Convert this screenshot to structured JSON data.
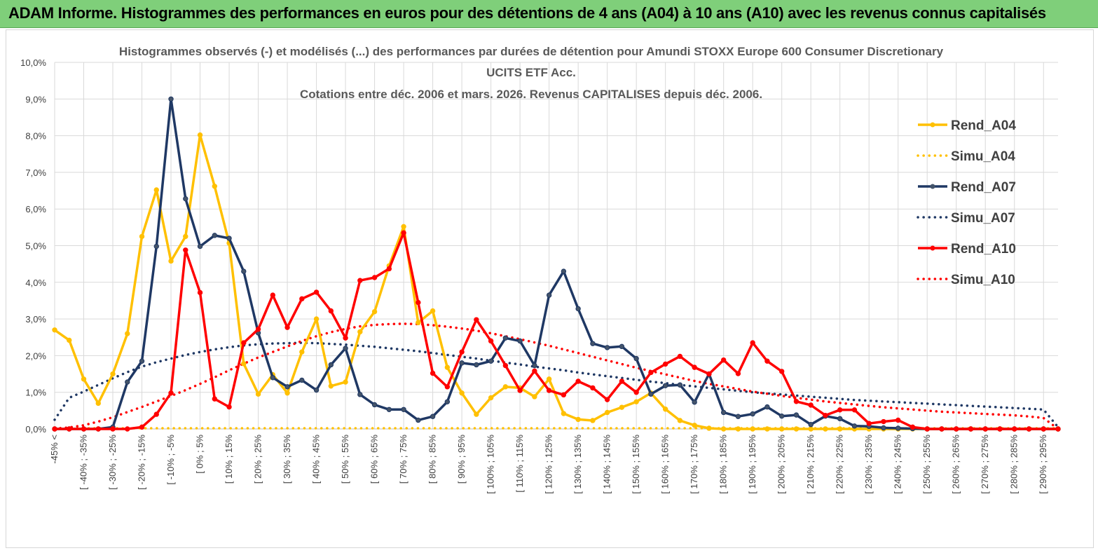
{
  "banner": {
    "title": "ADAM Informe. Histogrammes des performances en euros pour des détentions de 4 ans (A04) à 10 ans (A10) avec les revenus connus capitalisés"
  },
  "chart_data": {
    "type": "line",
    "title": [
      "Histogrammes observés (-) et modélisés (...) des performances par durées de détention pour Amundi STOXX Europe 600 Consumer Discretionary",
      "UCITS ETF Acc.",
      "Cotations entre déc. 2006 et mars. 2026. Revenus CAPITALISES depuis déc. 2006."
    ],
    "ylim": [
      0,
      10
    ],
    "yticks": [
      "0,0%",
      "1,0%",
      "2,0%",
      "3,0%",
      "4,0%",
      "5,0%",
      "6,0%",
      "7,0%",
      "8,0%",
      "9,0%",
      "10,0%"
    ],
    "grid": true,
    "legend_position": "right",
    "categories": [
      "-45% <",
      "[ -45% ; -40%",
      "[ -40% ; -35%",
      "[ -35% ; -30%",
      "[ -30% ; -25%",
      "[ -25% ; -20%",
      "[ -20% ; -15%",
      "[ -15% ; -10%",
      "[ -10% ; -5%",
      "[ -5% ; 0%",
      "[ 0% ; 5%",
      "[ 5% ; 10%",
      "[ 10% ; 15%",
      "[ 15% ; 20%",
      "[ 20% ; 25%",
      "[ 25% ; 30%",
      "[ 30% ; 35%",
      "[ 35% ; 40%",
      "[ 40% ; 45%",
      "[ 45% ; 50%",
      "[ 50% ; 55%",
      "[ 55% ; 60%",
      "[ 60% ; 65%",
      "[ 65% ; 70%",
      "[ 70% ; 75%",
      "[ 75% ; 80%",
      "[ 80% ; 85%",
      "[ 85% ; 90%",
      "[ 90% ; 95%",
      "[ 95% ; 100%",
      "[ 100% ; 105%",
      "[ 105% ; 110%",
      "[ 110% ; 115%",
      "[ 115% ; 120%",
      "[ 120% ; 125%",
      "[ 125% ; 130%",
      "[ 130% ; 135%",
      "[ 135% ; 140%",
      "[ 140% ; 145%",
      "[ 145% ; 150%",
      "[ 150% ; 155%",
      "[ 155% ; 160%",
      "[ 160% ; 165%",
      "[ 165% ; 170%",
      "[ 170% ; 175%",
      "[ 175% ; 180%",
      "[ 180% ; 185%",
      "[ 185% ; 190%",
      "[ 190% ; 195%",
      "[ 195% ; 200%",
      "[ 200% ; 205%",
      "[ 205% ; 210%",
      "[ 210% ; 215%",
      "[ 215% ; 220%",
      "[ 220% ; 225%",
      "[ 225% ; 230%",
      "[ 230% ; 235%",
      "[ 235% ; 240%",
      "[ 240% ; 245%",
      "[ 245% ; 250%",
      "[ 250% ; 255%",
      "[ 255% ; 260%",
      "[ 260% ; 265%",
      "[ 265% ; 270%",
      "[ 270% ; 275%",
      "[ 275% ; 280%",
      "[ 280% ; 285%",
      "[ 285% ; 290%",
      "[ 290% ; 295%",
      "[ 295% ; 300%"
    ],
    "visible_category_labels": [
      {
        "index": 0,
        "label": "-45% <"
      },
      {
        "index": 2,
        "label": "[ -40% ; -35%"
      },
      {
        "index": 4,
        "label": "[ -30% ; -25%"
      },
      {
        "index": 6,
        "label": "[ -20% ; -15%"
      },
      {
        "index": 8,
        "label": "[ -10% ; -5%"
      },
      {
        "index": 10,
        "label": "[ 0% ; 5%"
      },
      {
        "index": 12,
        "label": "[ 10% ; 15%"
      },
      {
        "index": 14,
        "label": "[ 20% ; 25%"
      },
      {
        "index": 16,
        "label": "[ 30% ; 35%"
      },
      {
        "index": 18,
        "label": "[ 40% ; 45%"
      },
      {
        "index": 20,
        "label": "[ 50% ; 55%"
      },
      {
        "index": 22,
        "label": "[ 60% ; 65%"
      },
      {
        "index": 24,
        "label": "[ 70% ; 75%"
      },
      {
        "index": 26,
        "label": "[ 80% ; 85%"
      },
      {
        "index": 28,
        "label": "[ 90% ; 95%"
      },
      {
        "index": 30,
        "label": "[ 100% ; 105%"
      },
      {
        "index": 32,
        "label": "[ 110% ; 115%"
      },
      {
        "index": 34,
        "label": "[ 120% ; 125%"
      },
      {
        "index": 36,
        "label": "[ 130% ; 135%"
      },
      {
        "index": 38,
        "label": "[ 140% ; 145%"
      },
      {
        "index": 40,
        "label": "[ 150% ; 155%"
      },
      {
        "index": 42,
        "label": "[ 160% ; 165%"
      },
      {
        "index": 44,
        "label": "[ 170% ; 175%"
      },
      {
        "index": 46,
        "label": "[ 180% ; 185%"
      },
      {
        "index": 48,
        "label": "[ 190% ; 195%"
      },
      {
        "index": 50,
        "label": "[ 200% ; 205%"
      },
      {
        "index": 52,
        "label": "[ 210% ; 215%"
      },
      {
        "index": 54,
        "label": "[ 220% ; 225%"
      },
      {
        "index": 56,
        "label": "[ 230% ; 235%"
      },
      {
        "index": 58,
        "label": "[ 240% ; 245%"
      },
      {
        "index": 60,
        "label": "[ 250% ; 255%"
      },
      {
        "index": 62,
        "label": "[ 260% ; 265%"
      },
      {
        "index": 64,
        "label": "[ 270% ; 275%"
      },
      {
        "index": 66,
        "label": "[ 280% ; 285%"
      },
      {
        "index": 68,
        "label": "[ 290% ; 295%"
      }
    ],
    "series": [
      {
        "name": "Rend_A04",
        "style": "solid-markers",
        "color": "#FFC000",
        "values": [
          2.7,
          2.42,
          1.36,
          0.7,
          1.5,
          2.6,
          5.25,
          6.52,
          4.58,
          5.25,
          8.02,
          6.62,
          5.07,
          1.78,
          0.95,
          1.48,
          0.98,
          2.1,
          3.0,
          1.17,
          1.28,
          2.65,
          3.2,
          4.45,
          5.52,
          2.9,
          3.22,
          1.68,
          0.98,
          0.4,
          0.85,
          1.15,
          1.12,
          0.88,
          1.36,
          0.42,
          0.26,
          0.23,
          0.45,
          0.59,
          0.74,
          0.98,
          0.54,
          0.23,
          0.1,
          0.02,
          0,
          0,
          0,
          0,
          0,
          0,
          0,
          0,
          0,
          0,
          0,
          0,
          0,
          0,
          0,
          0,
          0,
          0,
          0,
          0,
          0,
          0,
          0,
          0
        ]
      },
      {
        "name": "Simu_A04",
        "style": "dotted",
        "color": "#FFC000",
        "values": [
          0.02,
          0.02,
          0.02,
          0.02,
          0.02,
          0.02,
          0.02,
          0.02,
          0.02,
          0.02,
          0.02,
          0.02,
          0.02,
          0.02,
          0.02,
          0.02,
          0.02,
          0.02,
          0.02,
          0.02,
          0.02,
          0.02,
          0.02,
          0.02,
          0.02,
          0.02,
          0.02,
          0.02,
          0.02,
          0.02,
          0.02,
          0.02,
          0.02,
          0.02,
          0.02,
          0.02,
          0.02,
          0.02,
          0.02,
          0.02,
          0.02,
          0.02,
          0.02,
          0.02,
          0.02,
          0.02,
          0.02,
          0.02,
          0.02,
          0.02,
          0.02,
          0.02,
          0.02,
          0.02,
          0.02,
          0.02,
          0.02,
          0.02,
          0.02,
          0.02,
          0.02,
          0.02,
          0.02,
          0.02,
          0.02,
          0.02,
          0.02,
          0.02,
          0.02,
          0.02
        ]
      },
      {
        "name": "Rend_A07",
        "style": "solid-markers",
        "color": "#1F3864",
        "values": [
          0,
          0,
          0,
          0,
          0.05,
          1.28,
          1.85,
          4.98,
          9.0,
          6.28,
          4.98,
          5.28,
          5.2,
          4.3,
          2.62,
          1.4,
          1.15,
          1.33,
          1.06,
          1.75,
          2.2,
          0.94,
          0.66,
          0.53,
          0.53,
          0.24,
          0.34,
          0.74,
          1.8,
          1.75,
          1.85,
          2.48,
          2.4,
          1.73,
          3.65,
          4.3,
          3.28,
          2.33,
          2.22,
          2.25,
          1.92,
          0.95,
          1.18,
          1.2,
          0.73,
          1.5,
          0.45,
          0.34,
          0.41,
          0.6,
          0.35,
          0.38,
          0.12,
          0.35,
          0.28,
          0.08,
          0.07,
          0.03,
          0.02,
          0.01,
          0,
          0,
          0,
          0,
          0,
          0,
          0,
          0,
          0,
          0
        ]
      },
      {
        "name": "Simu_A07",
        "style": "dotted",
        "color": "#1F3864",
        "values": [
          0.25,
          0.85,
          1.02,
          1.2,
          1.38,
          1.55,
          1.7,
          1.82,
          1.92,
          2.02,
          2.1,
          2.17,
          2.23,
          2.28,
          2.31,
          2.33,
          2.34,
          2.35,
          2.34,
          2.32,
          2.3,
          2.27,
          2.24,
          2.2,
          2.16,
          2.12,
          2.07,
          2.02,
          1.97,
          1.92,
          1.86,
          1.81,
          1.76,
          1.7,
          1.65,
          1.6,
          1.54,
          1.49,
          1.44,
          1.39,
          1.34,
          1.29,
          1.25,
          1.2,
          1.16,
          1.12,
          1.08,
          1.04,
          1.0,
          0.97,
          0.94,
          0.91,
          0.88,
          0.85,
          0.82,
          0.79,
          0.77,
          0.75,
          0.73,
          0.71,
          0.69,
          0.67,
          0.65,
          0.63,
          0.61,
          0.59,
          0.57,
          0.55,
          0.53,
          0.05
        ]
      },
      {
        "name": "Rend_A10",
        "style": "solid-markers",
        "color": "#FF0000",
        "values": [
          0,
          0,
          0,
          0,
          0,
          0,
          0.05,
          0.4,
          0.98,
          4.88,
          3.72,
          0.82,
          0.6,
          2.35,
          2.72,
          3.65,
          2.77,
          3.55,
          3.73,
          3.22,
          2.48,
          4.05,
          4.13,
          4.37,
          5.35,
          3.45,
          1.52,
          1.15,
          2.1,
          2.98,
          2.4,
          1.73,
          1.05,
          1.58,
          1.05,
          0.93,
          1.3,
          1.12,
          0.8,
          1.3,
          1.0,
          1.54,
          1.77,
          1.98,
          1.68,
          1.5,
          1.88,
          1.51,
          2.35,
          1.85,
          1.57,
          0.75,
          0.65,
          0.37,
          0.52,
          0.52,
          0.15,
          0.2,
          0.24,
          0.05,
          0,
          0,
          0,
          0,
          0,
          0,
          0,
          0,
          0,
          0
        ]
      },
      {
        "name": "Simu_A10",
        "style": "dotted",
        "color": "#FF0000",
        "values": [
          0.01,
          0.04,
          0.1,
          0.2,
          0.32,
          0.46,
          0.6,
          0.75,
          0.9,
          1.06,
          1.23,
          1.41,
          1.6,
          1.78,
          1.95,
          2.1,
          2.25,
          2.4,
          2.53,
          2.64,
          2.73,
          2.8,
          2.84,
          2.86,
          2.87,
          2.86,
          2.83,
          2.79,
          2.74,
          2.68,
          2.61,
          2.53,
          2.45,
          2.36,
          2.27,
          2.17,
          2.07,
          1.97,
          1.87,
          1.77,
          1.67,
          1.58,
          1.49,
          1.4,
          1.31,
          1.23,
          1.16,
          1.09,
          1.02,
          0.96,
          0.9,
          0.85,
          0.8,
          0.75,
          0.71,
          0.67,
          0.63,
          0.59,
          0.56,
          0.53,
          0.5,
          0.47,
          0.45,
          0.43,
          0.41,
          0.39,
          0.37,
          0.34,
          0.3,
          0.0
        ]
      }
    ]
  }
}
